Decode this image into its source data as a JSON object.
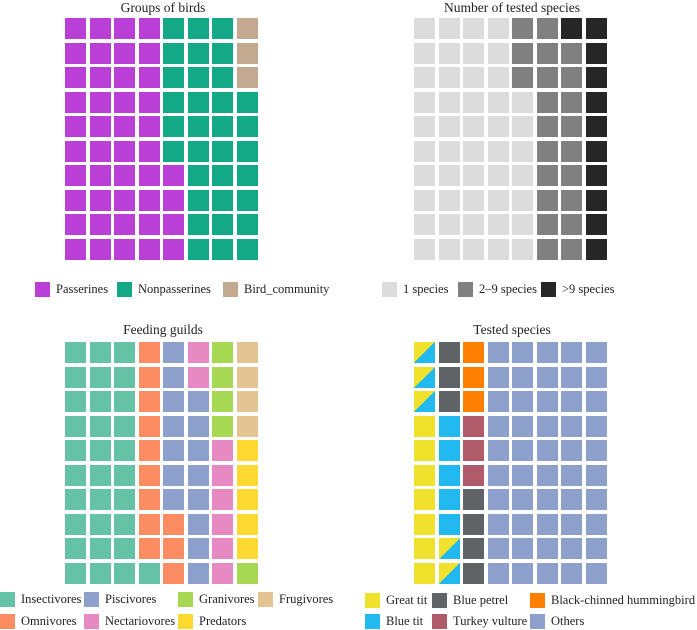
{
  "chart_data": [
    {
      "type": "waffle",
      "title": "Groups of birds",
      "legend": [
        {
          "code": "P",
          "label": "Passerines",
          "color": "#b93fd6",
          "count": 44
        },
        {
          "code": "N",
          "label": "Nonpasserines",
          "color": "#13a886",
          "count": 33
        },
        {
          "code": "B",
          "label": "Bird_community",
          "color": "#c4a991",
          "count": 3
        }
      ],
      "grid": [
        "PPPPNNNB",
        "PPPPNNNB",
        "PPPPNNNB",
        "PPPPNNNN",
        "PPPPNNNN",
        "PPPPNNNN",
        "PPPPPNNN",
        "PPPPPNNN",
        "PPPPPNNN",
        "PPPPPNNN"
      ]
    },
    {
      "type": "waffle",
      "title": "Number of tested species",
      "legend": [
        {
          "code": "1",
          "label": "1 species",
          "color": "#dcdcdc",
          "count": 47
        },
        {
          "code": "M",
          "label": "2–9 species",
          "color": "#808080",
          "count": 22
        },
        {
          "code": "D",
          "label": ">9 species",
          "color": "#262626",
          "count": 11
        }
      ],
      "grid": [
        "1111MMDD",
        "1111MMMD",
        "1111MMMD",
        "11111MMD",
        "11111MMD",
        "11111MMD",
        "11111MMD",
        "11111MMD",
        "11111MMD",
        "11111MMD"
      ]
    },
    {
      "type": "waffle",
      "title": "Feeding guilds",
      "legend": [
        {
          "code": "I",
          "label": "Insectivores",
          "color": "#66c2a5",
          "count": 31
        },
        {
          "code": "P",
          "label": "Piscivores",
          "color": "#8da0cb",
          "count": 15
        },
        {
          "code": "G",
          "label": "Granivores",
          "color": "#a6d854",
          "count": 5
        },
        {
          "code": "F",
          "label": "Frugivores",
          "color": "#e5c494",
          "count": 4
        },
        {
          "code": "O",
          "label": "Omnivores",
          "color": "#fc8d62",
          "count": 12
        },
        {
          "code": "N",
          "label": "Nectariovores",
          "color": "#e78ac3",
          "count": 8
        },
        {
          "code": "D",
          "label": "Predators",
          "color": "#ffd92f",
          "count": 5
        }
      ],
      "grid": [
        "IIIOPNGF",
        "IIIOPNGF",
        "IIIOPPGF",
        "IIIOPPGF",
        "IIIOPPND",
        "IIIOPPND",
        "IIIOPPND",
        "IIIOOPND",
        "IIIOOPND",
        "IIIIOPNG"
      ]
    },
    {
      "type": "waffle",
      "title": "Tested species",
      "legend": [
        {
          "code": "G",
          "label": "Great tit",
          "color": "#f0e22c"
        },
        {
          "code": "P",
          "label": "Blue petrel",
          "color": "#5f6366"
        },
        {
          "code": "H",
          "label": "Black-chinned hummingbird",
          "color": "#ff7f00"
        },
        {
          "code": "B",
          "label": "Blue tit",
          "color": "#22b8f0"
        },
        {
          "code": "V",
          "label": "Turkey vulture",
          "color": "#b05b6a"
        },
        {
          "code": "O",
          "label": "Others",
          "color": "#8da0cb"
        }
      ],
      "split_cell": {
        "code": "X",
        "upper": "G",
        "lower": "B"
      },
      "grid": [
        "XPHOOOOO",
        "XPHOOOOO",
        "XPHOOOOO",
        "GBVOOOOO",
        "GBVOOOOO",
        "GBVOOOOO",
        "GBPOOOOO",
        "GBPOOOOO",
        "GXPOOOOO",
        "GXPOOOOO"
      ]
    }
  ]
}
